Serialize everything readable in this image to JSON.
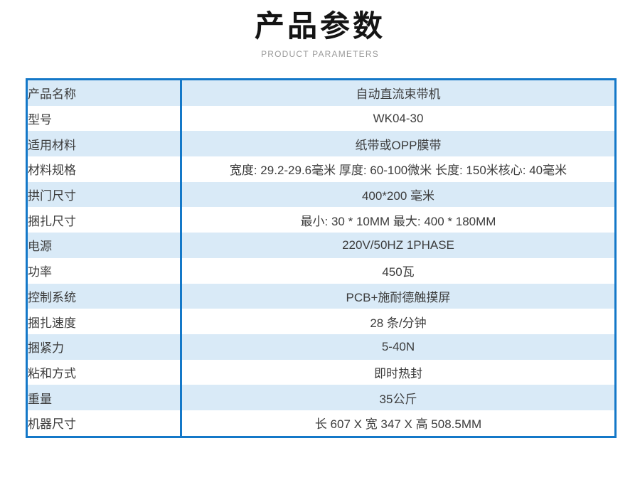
{
  "header": {
    "title": "产品参数",
    "subtitle": "PRODUCT PARAMETERS"
  },
  "colors": {
    "table_border_blue": "#1478c8",
    "row_stripe_light_blue": "#d9eaf7",
    "text_dark": "#3c3c3c",
    "subtitle_gray": "#9b9b9b"
  },
  "table": {
    "rows": [
      {
        "label": "产品名称",
        "value": "自动直流束带机"
      },
      {
        "label": "型号",
        "value": "WK04-30"
      },
      {
        "label": "适用材料",
        "value": "纸带或OPP膜带"
      },
      {
        "label": "材料规格",
        "value": "宽度: 29.2-29.6毫米 厚度: 60-100微米 长度: 150米核心: 40毫米"
      },
      {
        "label": "拱门尺寸",
        "value": "400*200 毫米"
      },
      {
        "label": "捆扎尺寸",
        "value": "最小: 30 * 10MM 最大: 400 * 180MM"
      },
      {
        "label": "电源",
        "value": "220V/50HZ  1PHASE"
      },
      {
        "label": "功率",
        "value": "450瓦"
      },
      {
        "label": "控制系统",
        "value": "PCB+施耐德触摸屏"
      },
      {
        "label": "捆扎速度",
        "value": "28 条/分钟"
      },
      {
        "label": "捆紧力",
        "value": "5-40N"
      },
      {
        "label": "粘和方式",
        "value": "即时热封"
      },
      {
        "label": "重量",
        "value": "35公斤"
      },
      {
        "label": "机器尺寸",
        "value": "长 607 X 宽 347 X 高 508.5MM"
      }
    ]
  }
}
